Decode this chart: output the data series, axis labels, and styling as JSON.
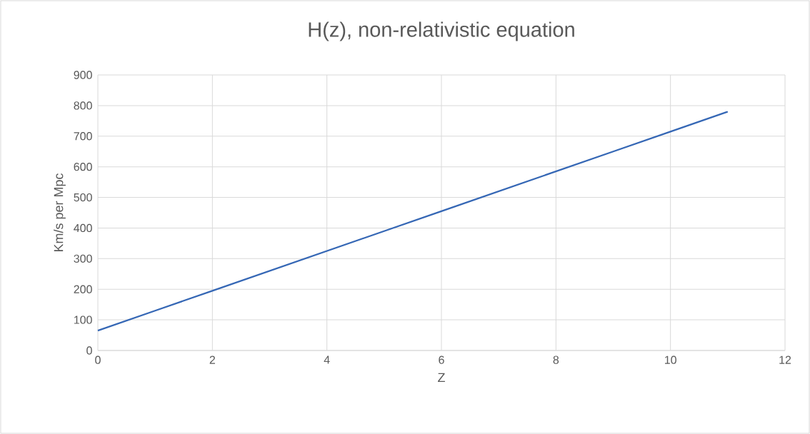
{
  "chart_data": {
    "type": "line",
    "title": "H(z), non-relativistic equation",
    "xlabel": "Z",
    "ylabel": "Km/s per Mpc",
    "x": [
      0,
      1,
      2,
      3,
      4,
      5,
      6,
      7,
      8,
      9,
      10,
      11
    ],
    "series": [
      {
        "color": "#3567b5",
        "values": [
          65,
          130,
          195,
          260,
          325,
          390,
          455,
          520,
          585,
          650,
          715,
          780
        ]
      }
    ],
    "xlim": [
      0,
      12
    ],
    "xticks": [
      0,
      2,
      4,
      6,
      8,
      10,
      12
    ],
    "ylim": [
      0,
      900
    ],
    "yticks": [
      0,
      100,
      200,
      300,
      400,
      500,
      600,
      700,
      800,
      900
    ],
    "grid": true
  }
}
